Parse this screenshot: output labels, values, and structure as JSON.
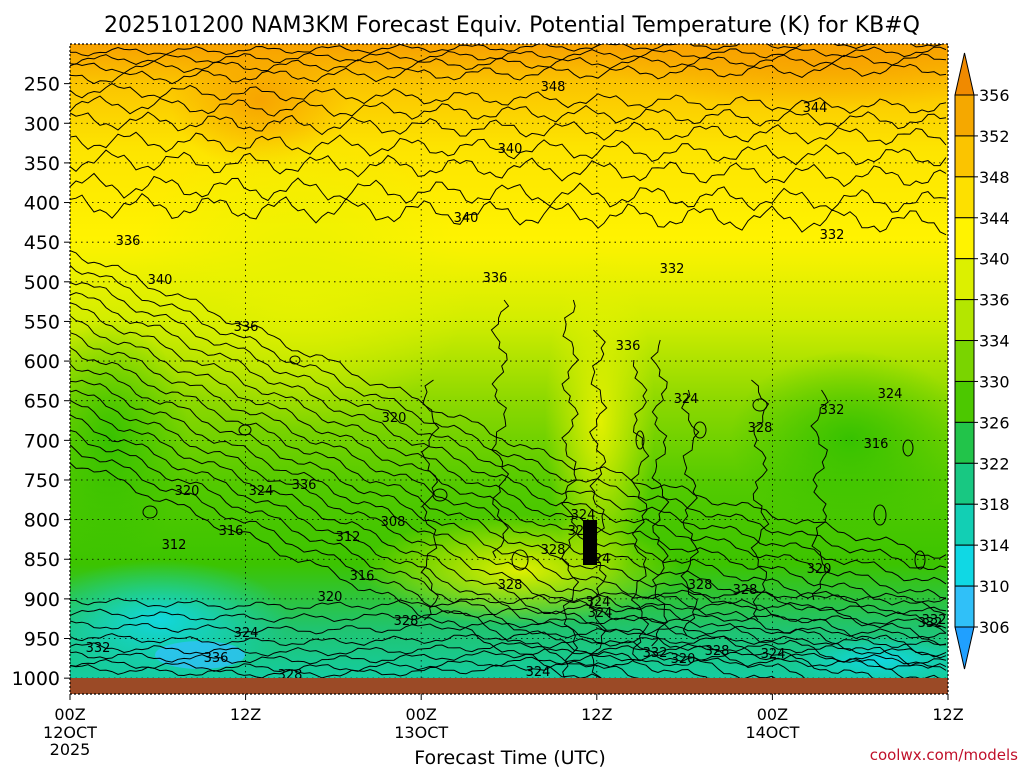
{
  "chart_data": {
    "type": "heatmap",
    "title": "2025101200 NAM3KM Forecast Equiv. Potential Temperature (K) for KB#Q",
    "xlabel": "Forecast Time (UTC)",
    "ylabel": "",
    "credit": "coolwx.com/models",
    "x_ticks": [
      {
        "hour": 0,
        "label": "00Z",
        "day": "12OCT",
        "year": "2025"
      },
      {
        "hour": 12,
        "label": "12Z",
        "day": "",
        "year": ""
      },
      {
        "hour": 24,
        "label": "00Z",
        "day": "13OCT",
        "year": ""
      },
      {
        "hour": 36,
        "label": "12Z",
        "day": "",
        "year": ""
      },
      {
        "hour": 48,
        "label": "00Z",
        "day": "14OCT",
        "year": ""
      },
      {
        "hour": 60,
        "label": "12Z",
        "day": "",
        "year": ""
      }
    ],
    "y_ticks": [
      "250",
      "300",
      "350",
      "400",
      "450",
      "500",
      "550",
      "600",
      "650",
      "700",
      "750",
      "800",
      "850",
      "900",
      "950",
      "1000"
    ],
    "y_tick_values": [
      250,
      300,
      350,
      400,
      450,
      500,
      550,
      600,
      650,
      700,
      750,
      800,
      850,
      900,
      950,
      1000
    ],
    "x_range_hours": [
      0,
      60
    ],
    "y_range_hpa": [
      200,
      1020
    ],
    "colorbar": {
      "ticks": [
        "356",
        "352",
        "348",
        "344",
        "340",
        "336",
        "334",
        "330",
        "326",
        "322",
        "318",
        "314",
        "310",
        "306"
      ],
      "colors": [
        "#f08a00",
        "#f5a800",
        "#fbc400",
        "#fde000",
        "#fff300",
        "#dcf000",
        "#b4e600",
        "#7ad400",
        "#4cc800",
        "#22c44a",
        "#18c882",
        "#12cfb4",
        "#10d8e4",
        "#30c0f8",
        "#20a0ff"
      ]
    },
    "contour_labels": [
      "348",
      "344",
      "340",
      "336",
      "340",
      "336",
      "340",
      "336",
      "332",
      "332",
      "336",
      "324",
      "324",
      "332",
      "328",
      "316",
      "320",
      "324",
      "336",
      "320",
      "316",
      "312",
      "312",
      "308",
      "316",
      "328",
      "324",
      "332",
      "336",
      "328",
      "324",
      "324",
      "328",
      "324",
      "328",
      "324",
      "328",
      "328",
      "320",
      "332",
      "332",
      "320",
      "328",
      "324",
      "328",
      "324",
      "320",
      "332"
    ],
    "ground_color": "#9b4a26",
    "grid": "dotted"
  }
}
